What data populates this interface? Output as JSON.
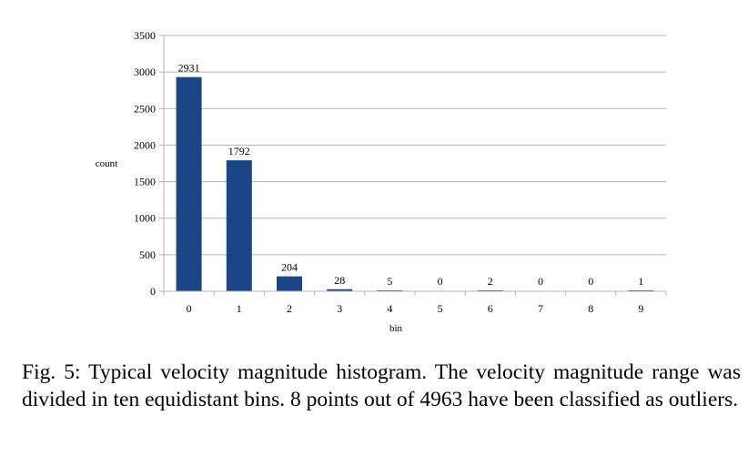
{
  "chart_data": {
    "type": "bar",
    "categories": [
      "0",
      "1",
      "2",
      "3",
      "4",
      "5",
      "6",
      "7",
      "8",
      "9"
    ],
    "values": [
      2931,
      1792,
      204,
      28,
      5,
      0,
      2,
      0,
      0,
      1
    ],
    "data_labels": [
      "2931",
      "1792",
      "204",
      "28",
      "5",
      "0",
      "2",
      "0",
      "0",
      "1"
    ],
    "title": "",
    "xlabel": "bin",
    "ylabel": "count",
    "ylim": [
      0,
      3500
    ],
    "yticks": [
      0,
      500,
      1000,
      1500,
      2000,
      2500,
      3000,
      3500
    ],
    "ytick_labels": [
      "0",
      "500",
      "1000",
      "1500",
      "2000",
      "2500",
      "3000",
      "3500"
    ],
    "grid": true,
    "legend": "none",
    "bar_color": "#1a4586",
    "grid_color": "#b3b3b3"
  },
  "caption": "Fig. 5: Typical velocity magnitude histogram. The velocity magnitude range was divided in ten equidistant bins.  8 points out of 4963 have been classified as outliers."
}
